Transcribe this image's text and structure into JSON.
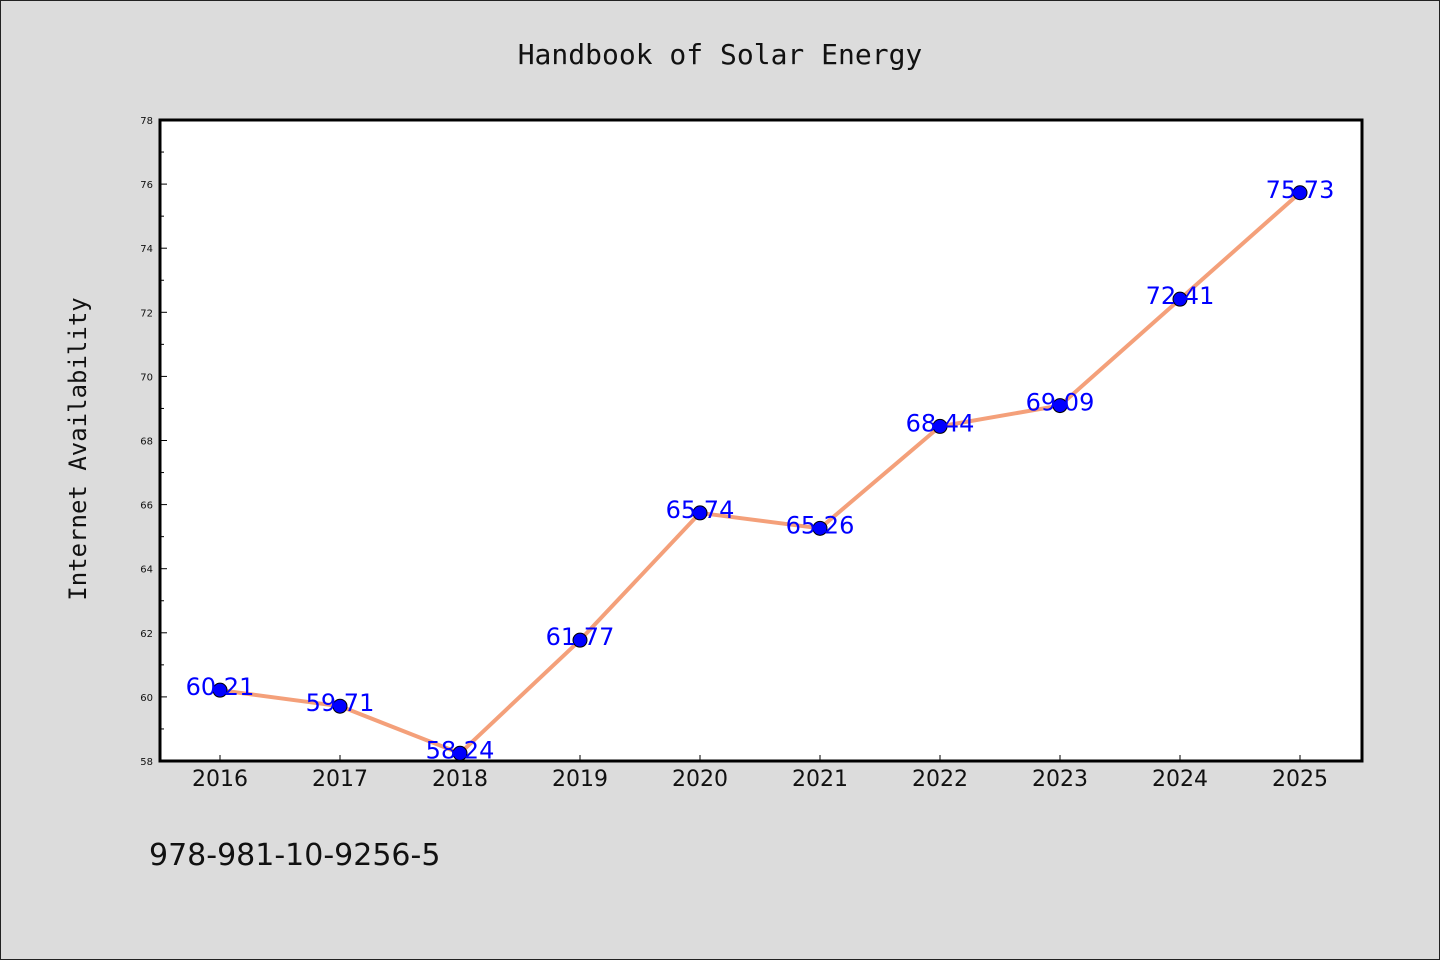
{
  "chart_data": {
    "type": "line",
    "title": "Handbook of Solar Energy",
    "xlabel": "",
    "ylabel": "Internet Availability",
    "categories": [
      "2016",
      "2017",
      "2018",
      "2019",
      "2020",
      "2021",
      "2022",
      "2023",
      "2024",
      "2025"
    ],
    "values": [
      60.21,
      59.71,
      58.24,
      61.77,
      65.74,
      65.26,
      68.44,
      69.09,
      72.41,
      75.73
    ],
    "data_labels": [
      "60.21",
      "59.71",
      "58.24",
      "61.77",
      "65.74",
      "65.26",
      "68.44",
      "69.09",
      "72.41",
      "75.73"
    ],
    "ylim": [
      58,
      78
    ],
    "yticks": [
      "58",
      "60",
      "62",
      "64",
      "66",
      "68",
      "70",
      "72",
      "74",
      "76",
      "78"
    ],
    "grid": false,
    "legend": "none",
    "colors": {
      "line": "#f4a07a",
      "marker": "#0000ff",
      "marker_edge": "#000000",
      "data_label": "#0000ff",
      "plot_background": "#ffffff",
      "figure_background": "#dcdcdc"
    }
  },
  "footer": {
    "isbn": "978-981-10-9256-5"
  }
}
